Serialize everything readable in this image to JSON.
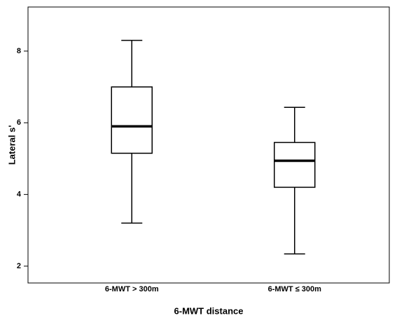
{
  "chart_data": {
    "type": "box",
    "x_label": "6-MWT distance",
    "y_label": "Lateral s'",
    "categories": [
      "6-MWT > 300m",
      "6-MWT ≤ 300m"
    ],
    "min": [
      3.2,
      2.34
    ],
    "q1": [
      5.15,
      4.2
    ],
    "median": [
      5.9,
      4.94
    ],
    "q3": [
      7.0,
      5.45
    ],
    "max": [
      8.3,
      6.43
    ],
    "ylim": [
      1.53,
      9.23
    ],
    "yticks": [
      2,
      4,
      6,
      8
    ]
  }
}
